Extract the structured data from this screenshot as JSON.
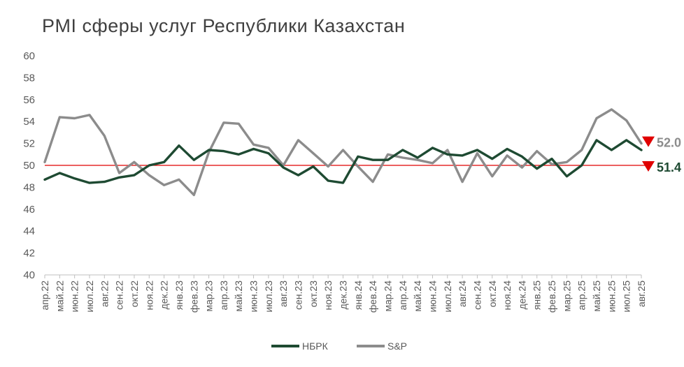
{
  "chart_data": {
    "type": "line",
    "title": "PMI сферы услуг Республики Казахстан",
    "xlabel": "",
    "ylabel": "",
    "ylim": [
      40,
      60
    ],
    "yticks": [
      40,
      42,
      44,
      46,
      48,
      50,
      52,
      54,
      56,
      58,
      60
    ],
    "grid": false,
    "legend": "bottom",
    "reference_line": {
      "y": 50,
      "color": "#e00000"
    },
    "categories": [
      "апр.22",
      "май.22",
      "июн.22",
      "июл.22",
      "авг.22",
      "сен.22",
      "окт.22",
      "ноя.22",
      "дек.22",
      "янв.23",
      "фев.23",
      "мар.23",
      "апр.23",
      "май.23",
      "июн.23",
      "июл.23",
      "авг.23",
      "сен.23",
      "окт.23",
      "ноя.23",
      "дек.23",
      "янв.24",
      "фев.24",
      "мар.24",
      "апр.24",
      "май.24",
      "июн.24",
      "июл.24",
      "авг.24",
      "сен.24",
      "окт.24",
      "ноя.24",
      "дек.24",
      "янв.25",
      "фев.25",
      "мар.25",
      "апр.25",
      "май.25",
      "июн.25",
      "июл.25",
      "авг.25"
    ],
    "series": [
      {
        "name": "НБРК",
        "color": "#1e4a32",
        "values": [
          48.7,
          49.3,
          48.8,
          48.4,
          48.5,
          48.9,
          49.1,
          50.0,
          50.3,
          51.8,
          50.5,
          51.4,
          51.3,
          51.0,
          51.5,
          51.1,
          49.8,
          49.1,
          49.9,
          48.6,
          48.4,
          50.8,
          50.5,
          50.5,
          51.4,
          50.7,
          51.6,
          51.0,
          50.9,
          51.4,
          50.6,
          51.5,
          50.8,
          49.7,
          50.6,
          49.0,
          50.0,
          52.3,
          51.4,
          52.3,
          51.4
        ],
        "end_label": "51.4"
      },
      {
        "name": "S&P",
        "color": "#8c8c8c",
        "values": [
          50.3,
          54.4,
          54.3,
          54.6,
          52.7,
          49.3,
          50.3,
          49.1,
          48.2,
          48.7,
          47.3,
          51.2,
          53.9,
          53.8,
          51.9,
          51.6,
          50.0,
          52.3,
          51.1,
          49.9,
          51.4,
          49.9,
          48.5,
          51.0,
          50.7,
          50.5,
          50.2,
          51.4,
          48.5,
          51.1,
          49.0,
          50.9,
          49.8,
          51.3,
          50.1,
          50.3,
          51.4,
          54.3,
          55.1,
          54.1,
          52.0
        ],
        "end_label": "52.0"
      }
    ]
  }
}
